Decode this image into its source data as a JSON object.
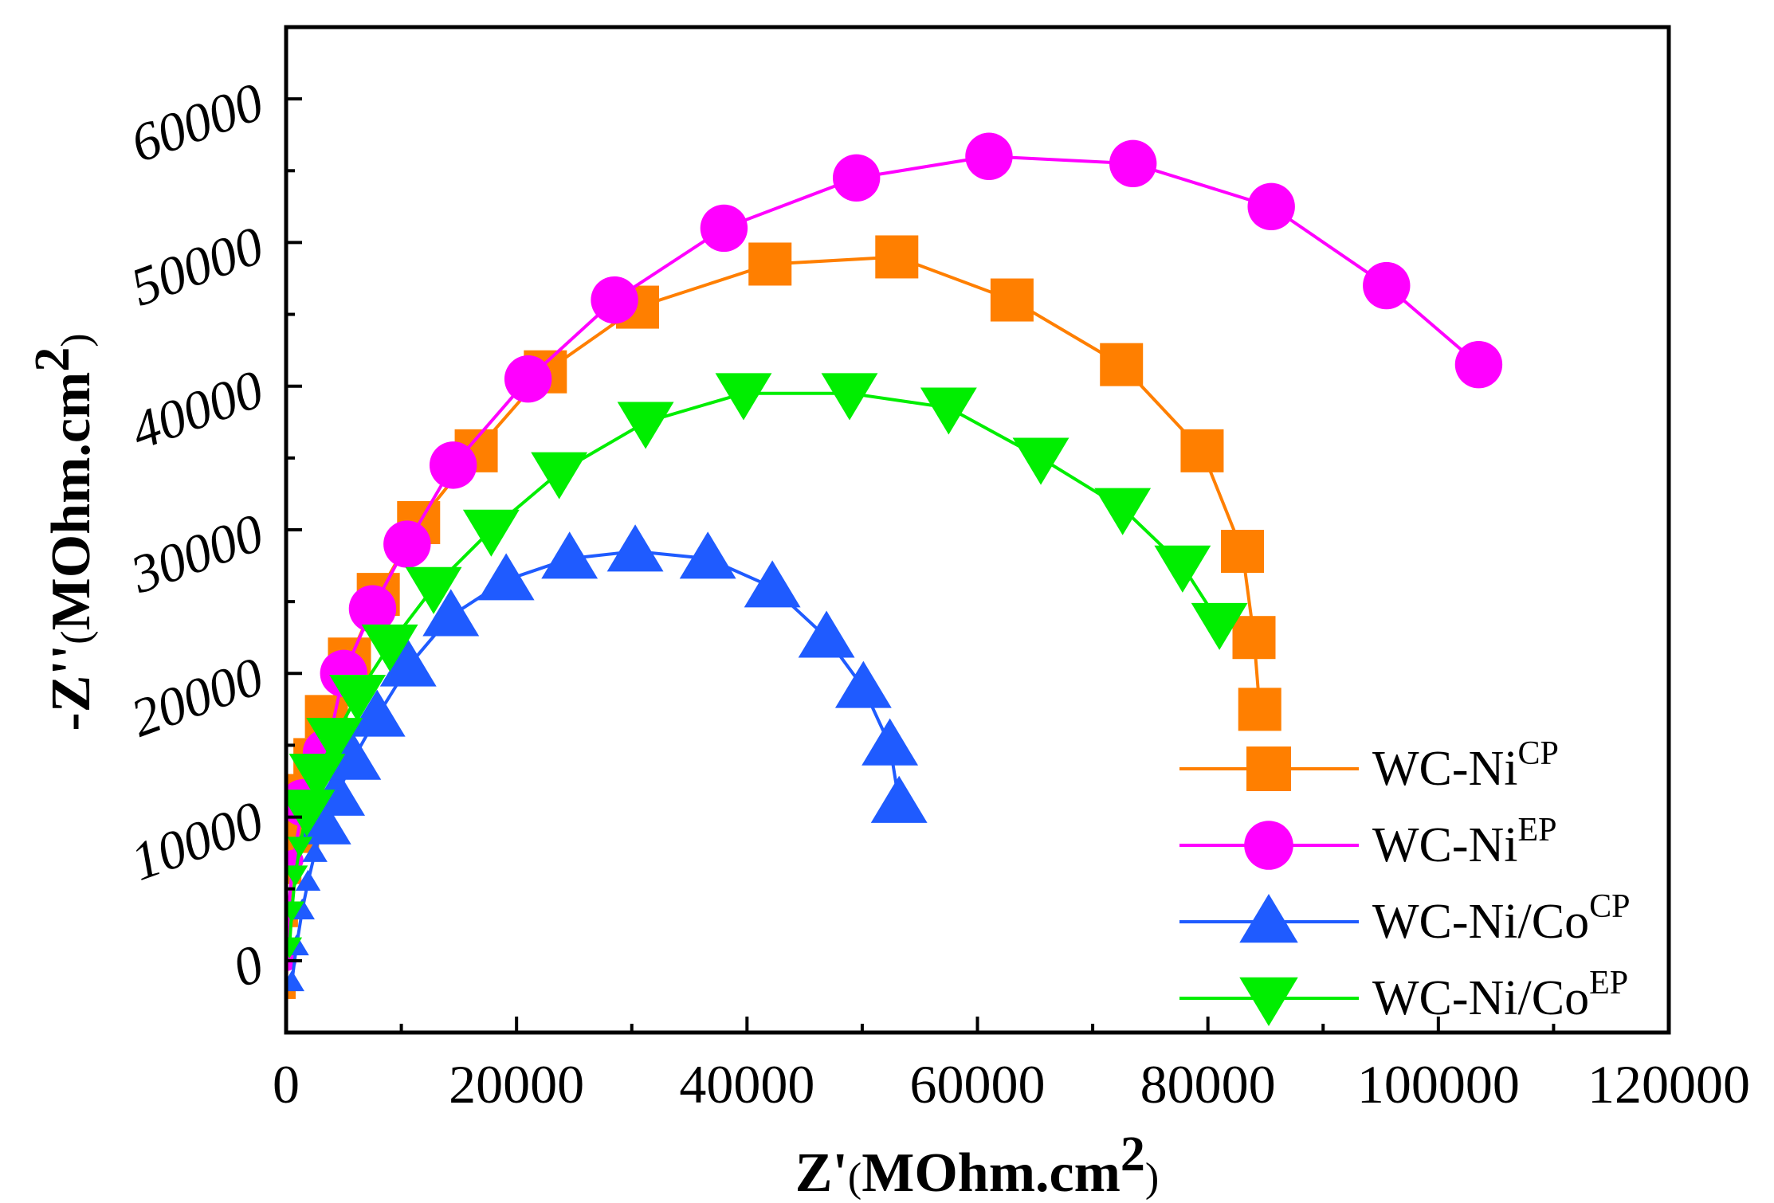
{
  "chart_data": {
    "type": "scatter",
    "xlabel": {
      "base": "Z'",
      "unit_open": "(",
      "unit": "MOhm.cm",
      "sup": "2",
      "unit_close": ")"
    },
    "ylabel": {
      "base": "-Z''",
      "unit_open": "(",
      "unit": "MOhm.cm",
      "sup": "2",
      "unit_close": ")"
    },
    "xlim": [
      0,
      120000
    ],
    "ylim": [
      -5000,
      65000
    ],
    "xticks": [
      0,
      20000,
      40000,
      60000,
      80000,
      100000,
      120000
    ],
    "yticks": [
      0,
      10000,
      20000,
      30000,
      40000,
      50000,
      60000
    ],
    "xtick_labels": [
      "0",
      "20000",
      "40000",
      "60000",
      "80000",
      "100000",
      "120000"
    ],
    "ytick_labels": [
      "0",
      "10000",
      "20000",
      "30000",
      "40000",
      "50000",
      "60000"
    ],
    "grid": false,
    "legend_position": "bottom-right",
    "series": [
      {
        "name": "WC-Ni",
        "sup": "CP",
        "color": "#ff7f00",
        "marker": "square",
        "x": [
          0,
          200,
          500,
          1000,
          1500,
          2500,
          3500,
          5500,
          8000,
          11500,
          16500,
          22500,
          30500,
          42000,
          53000,
          63000,
          72500,
          79500,
          83000,
          84000,
          84500
        ],
        "y": [
          -2000,
          3000,
          6000,
          9000,
          11500,
          14000,
          17000,
          21000,
          25500,
          30500,
          35500,
          41000,
          45500,
          48500,
          49000,
          46000,
          41500,
          35500,
          28500,
          22500,
          17500
        ]
      },
      {
        "name": "WC-Ni",
        "sup": "EP",
        "color": "#ff00ff",
        "marker": "circle",
        "x": [
          0,
          200,
          600,
          1500,
          3500,
          5000,
          7500,
          10500,
          14500,
          21000,
          28500,
          38000,
          49500,
          61000,
          73500,
          85500,
          95500,
          103500
        ],
        "y": [
          0,
          3500,
          7000,
          11000,
          14500,
          20000,
          24500,
          29000,
          34500,
          40500,
          46000,
          51000,
          54500,
          56000,
          55500,
          52500,
          47000,
          41500
        ]
      },
      {
        "name": "WC-Ni/Co",
        "sup": "CP",
        "color": "#1f5bff",
        "marker": "triangle-up",
        "x": [
          500,
          900,
          1400,
          1900,
          2500,
          3200,
          4400,
          5800,
          7900,
          10600,
          14300,
          19100,
          24600,
          30300,
          36600,
          42200,
          46900,
          50100,
          52400,
          53200
        ],
        "y": [
          -1500,
          1000,
          3500,
          5500,
          7500,
          9500,
          11500,
          14000,
          17000,
          20500,
          24000,
          26500,
          28000,
          28500,
          28000,
          26000,
          22500,
          19000,
          15000,
          11000
        ]
      },
      {
        "name": "WC-Ni/Co",
        "sup": "EP",
        "color": "#00ee00",
        "marker": "triangle-down",
        "x": [
          300,
          500,
          800,
          1200,
          1800,
          2700,
          4200,
          6200,
          9000,
          12800,
          17800,
          23700,
          31200,
          39700,
          48900,
          57500,
          65500,
          72600,
          77800,
          81000
        ],
        "y": [
          1000,
          3500,
          6000,
          8000,
          10500,
          13000,
          15500,
          18500,
          22000,
          26000,
          30000,
          34000,
          37500,
          39500,
          39500,
          38500,
          35000,
          31500,
          27500,
          23500
        ]
      }
    ]
  }
}
